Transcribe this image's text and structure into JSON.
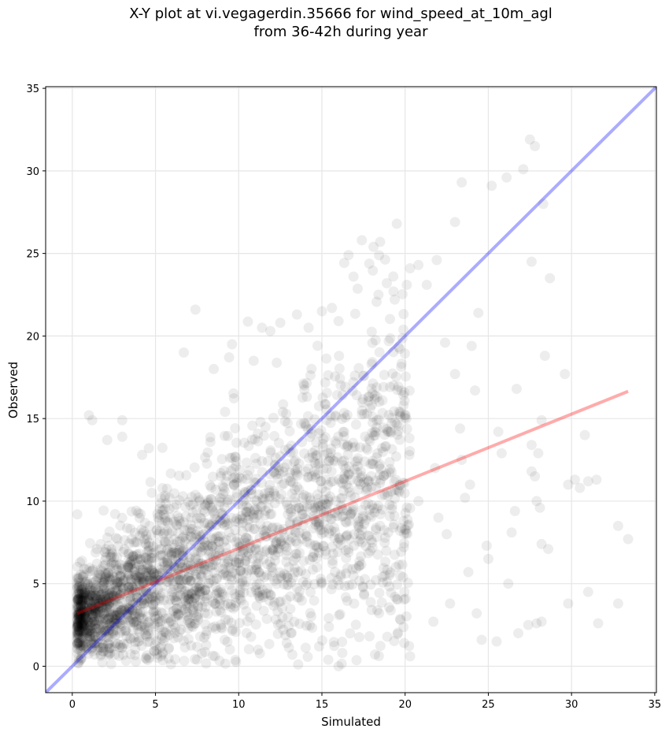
{
  "chart_data": {
    "type": "scatter",
    "title_line1": "X-Y plot at vi.vegagerdin.35666 for wind_speed_at_10m_agl",
    "title_line2": "from 36-42h during year",
    "xlabel": "Simulated",
    "ylabel": "Observed",
    "xlim": [
      -1.6,
      35.1
    ],
    "ylim": [
      -1.6,
      35.1
    ],
    "xticks": [
      0,
      5,
      10,
      15,
      20,
      25,
      30,
      35
    ],
    "yticks": [
      0,
      5,
      10,
      15,
      20,
      25,
      30,
      35
    ],
    "grid": true,
    "colors": {
      "points": "#000000",
      "identity_line": "#0000ff",
      "fit_line": "#ff0000"
    },
    "identity_line": {
      "x": [
        -1.6,
        35.1
      ],
      "y": [
        -1.6,
        35.1
      ]
    },
    "fit_line": {
      "x": [
        0.3,
        33.4
      ],
      "y": [
        3.2,
        16.65
      ]
    },
    "series": [
      {
        "points": [
          [
            0.3,
            9.2
          ],
          [
            1.0,
            15.2
          ],
          [
            1.2,
            14.9
          ],
          [
            2.1,
            13.7
          ],
          [
            3.0,
            14.9
          ],
          [
            3.0,
            13.9
          ],
          [
            4.2,
            12.8
          ],
          [
            4.6,
            13.2
          ],
          [
            6.7,
            19.0
          ],
          [
            7.4,
            21.6
          ],
          [
            8.5,
            18.0
          ],
          [
            9.6,
            19.5
          ],
          [
            10.9,
            18.5
          ],
          [
            11.4,
            20.5
          ],
          [
            11.9,
            20.3
          ],
          [
            12.5,
            20.8
          ],
          [
            13.5,
            21.3
          ],
          [
            14.2,
            20.5
          ],
          [
            15.0,
            21.5
          ],
          [
            15.6,
            21.7
          ],
          [
            16.0,
            20.9
          ],
          [
            16.9,
            23.6
          ],
          [
            16.6,
            24.9
          ],
          [
            17.4,
            25.8
          ],
          [
            18.1,
            25.4
          ],
          [
            18.5,
            25.7
          ],
          [
            18.4,
            22.5
          ],
          [
            18.9,
            23.2
          ],
          [
            19.3,
            22.7
          ],
          [
            19.5,
            26.8
          ],
          [
            20.1,
            23.1
          ],
          [
            20.3,
            24.1
          ],
          [
            20.8,
            24.3
          ],
          [
            21.3,
            23.1
          ],
          [
            21.9,
            24.6
          ],
          [
            23.0,
            26.9
          ],
          [
            23.4,
            29.3
          ],
          [
            25.2,
            29.1
          ],
          [
            26.1,
            29.6
          ],
          [
            27.1,
            30.1
          ],
          [
            27.5,
            31.9
          ],
          [
            27.8,
            31.5
          ],
          [
            28.3,
            28.0
          ],
          [
            27.6,
            24.5
          ],
          [
            28.7,
            23.5
          ],
          [
            24.4,
            21.4
          ],
          [
            24.0,
            19.4
          ],
          [
            22.4,
            19.6
          ],
          [
            23.0,
            17.7
          ],
          [
            24.2,
            16.7
          ],
          [
            26.7,
            16.8
          ],
          [
            28.4,
            18.8
          ],
          [
            29.6,
            17.7
          ],
          [
            28.2,
            14.9
          ],
          [
            27.6,
            13.4
          ],
          [
            28.0,
            12.9
          ],
          [
            25.6,
            14.2
          ],
          [
            25.8,
            12.9
          ],
          [
            23.3,
            14.4
          ],
          [
            23.4,
            12.5
          ],
          [
            27.6,
            11.8
          ],
          [
            27.8,
            11.5
          ],
          [
            27.9,
            10.0
          ],
          [
            28.1,
            9.6
          ],
          [
            29.8,
            11.0
          ],
          [
            30.2,
            11.3
          ],
          [
            30.5,
            10.8
          ],
          [
            30.8,
            14.0
          ],
          [
            31.0,
            11.2
          ],
          [
            31.5,
            11.3
          ],
          [
            32.8,
            8.5
          ],
          [
            33.4,
            7.7
          ],
          [
            28.2,
            7.4
          ],
          [
            28.6,
            7.1
          ],
          [
            26.4,
            8.1
          ],
          [
            26.6,
            9.4
          ],
          [
            31.0,
            4.5
          ],
          [
            29.8,
            3.8
          ],
          [
            31.6,
            2.6
          ],
          [
            32.8,
            3.8
          ],
          [
            26.2,
            5.0
          ],
          [
            25.0,
            6.5
          ],
          [
            24.3,
            3.2
          ],
          [
            24.6,
            1.6
          ],
          [
            25.5,
            1.5
          ],
          [
            26.8,
            2.0
          ],
          [
            27.4,
            2.5
          ],
          [
            27.9,
            2.6
          ],
          [
            28.2,
            2.7
          ],
          [
            22.7,
            3.8
          ],
          [
            21.7,
            2.7
          ],
          [
            20.3,
            0.6
          ],
          [
            16.0,
            0.0
          ],
          [
            19.7,
            5.5
          ],
          [
            18.5,
            8.5
          ],
          [
            17.2,
            10.7
          ],
          [
            20.8,
            10.0
          ],
          [
            21.8,
            12.0
          ],
          [
            22.0,
            9.0
          ],
          [
            23.6,
            10.2
          ],
          [
            23.9,
            11.0
          ],
          [
            22.5,
            8.0
          ],
          [
            23.8,
            5.7
          ],
          [
            24.9,
            7.3
          ]
        ]
      }
    ]
  }
}
